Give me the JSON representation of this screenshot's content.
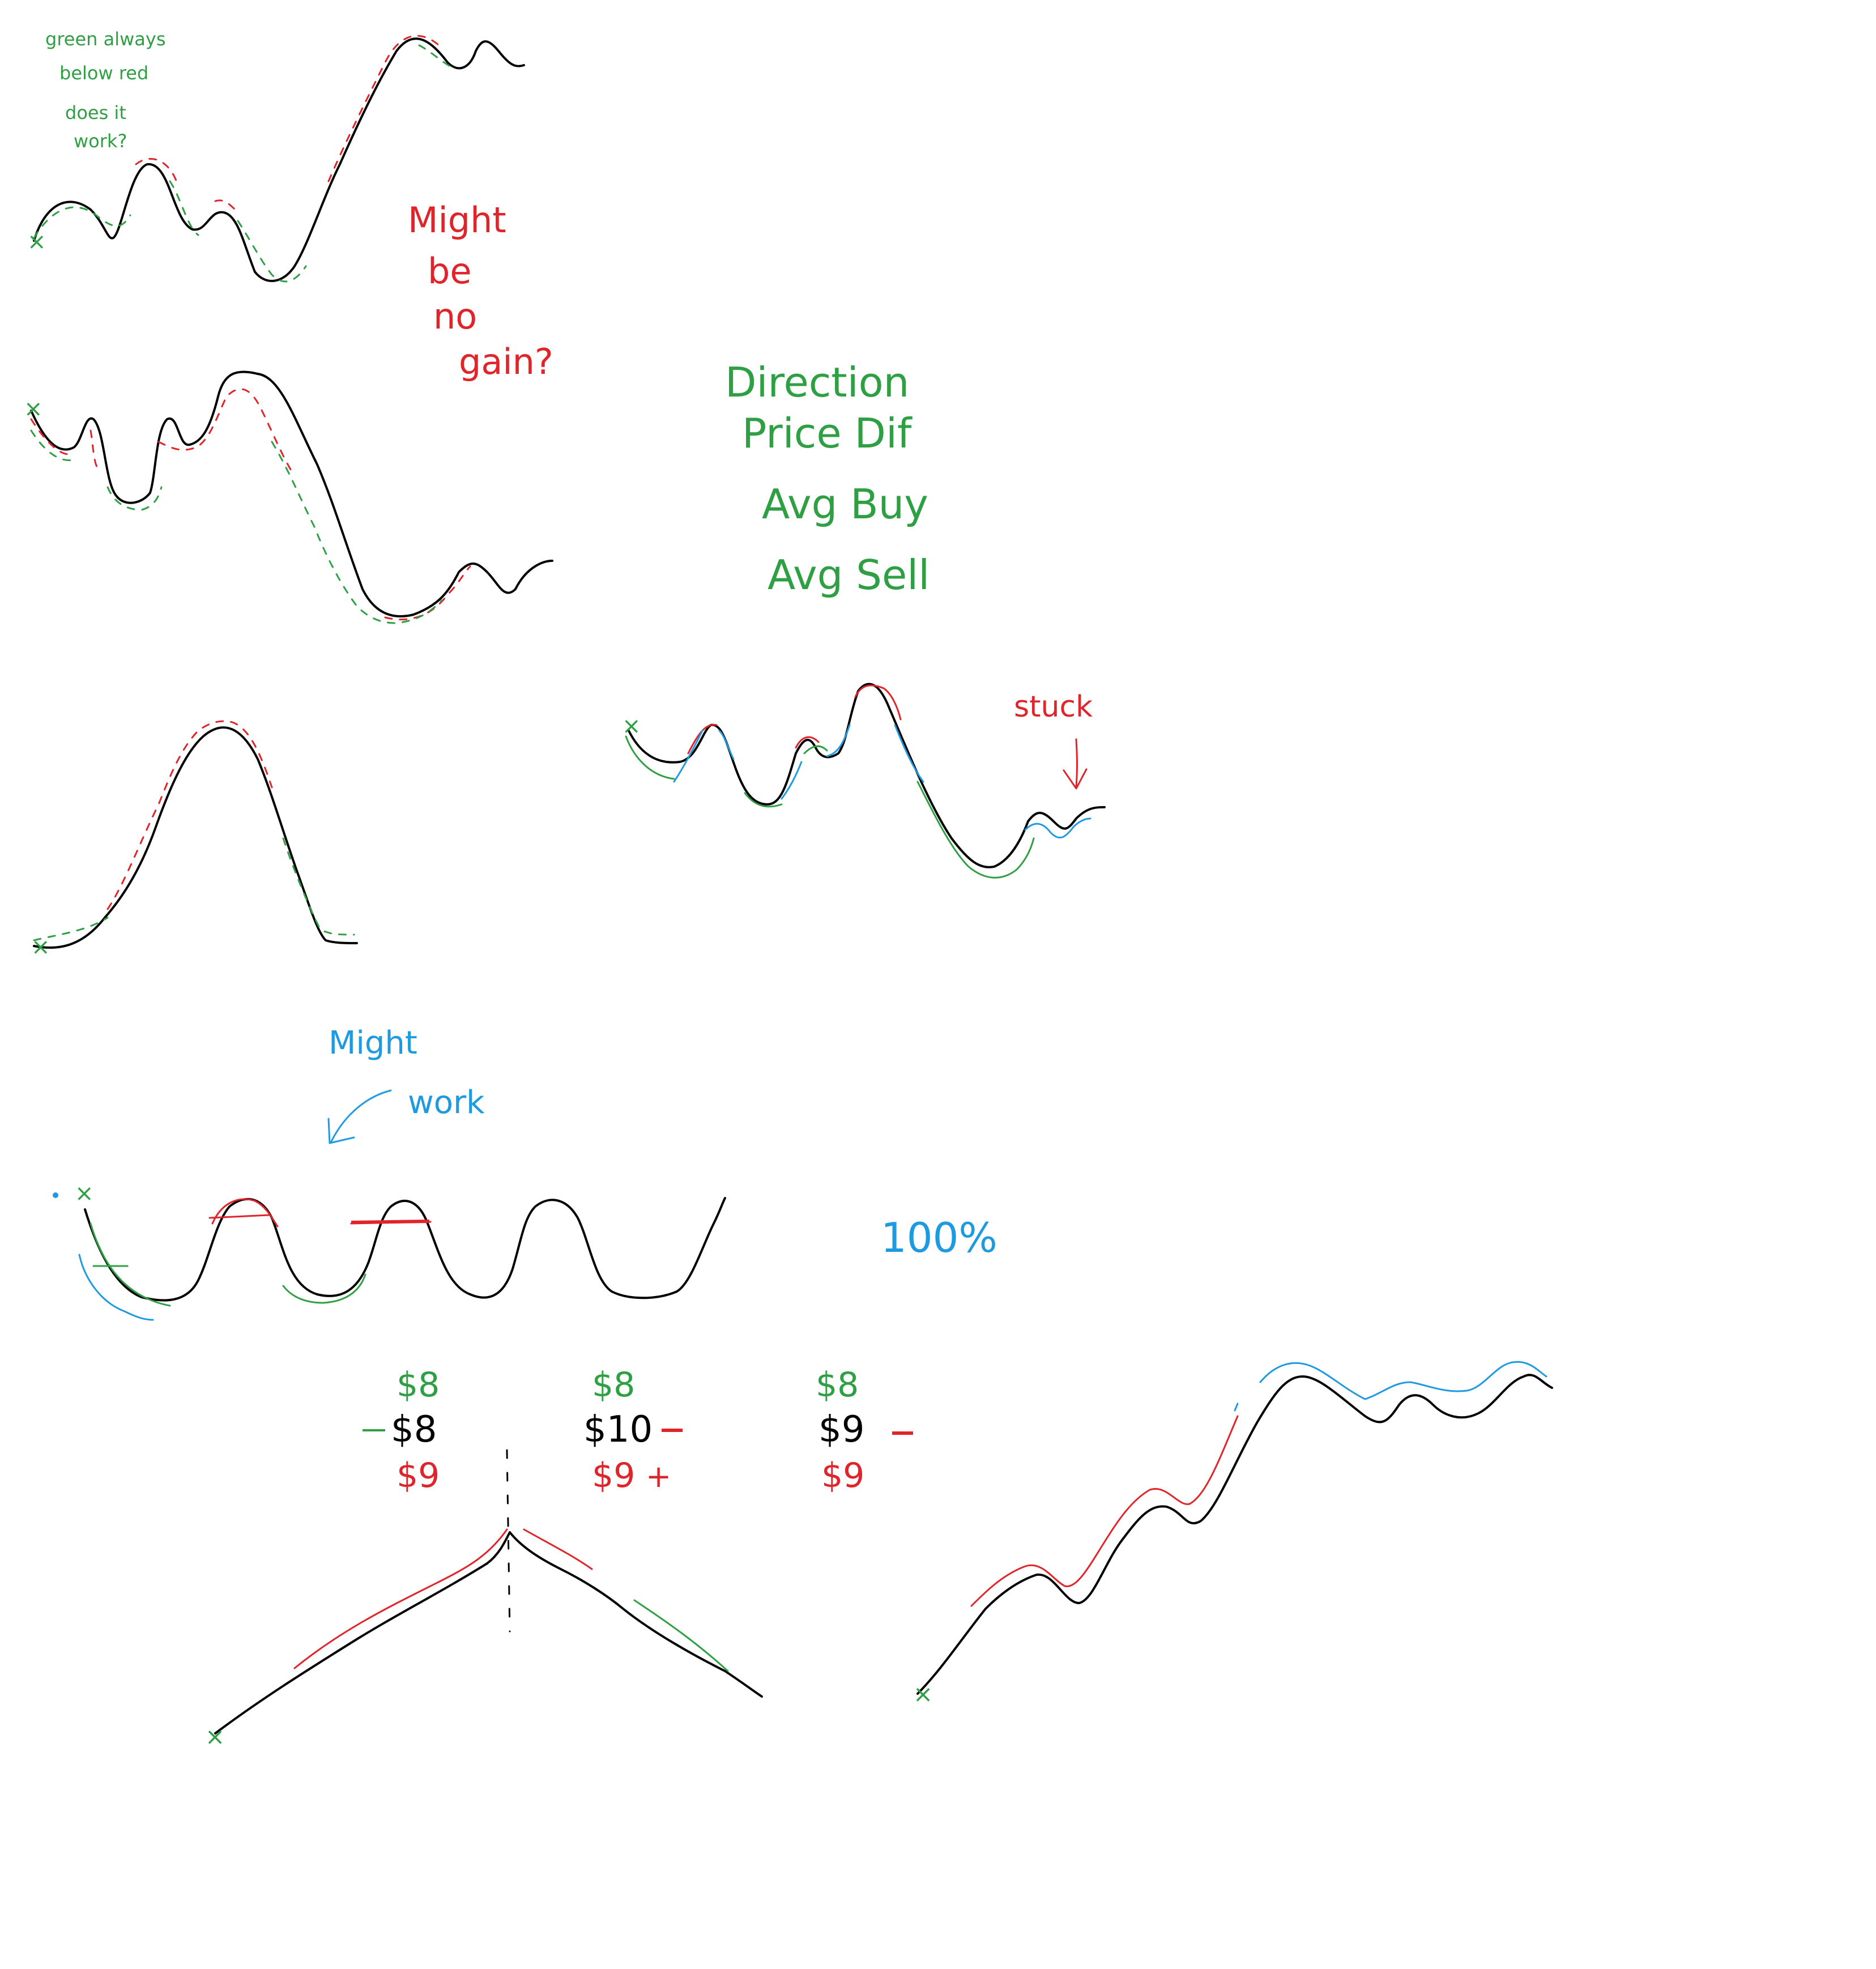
{
  "colors": {
    "price": "#000000",
    "green": "#2ea043",
    "red": "#e0242a",
    "blue": "#1e9be0"
  },
  "notes": {
    "green_note": [
      "green always",
      "below red",
      "does it",
      "work?"
    ],
    "might_be_no_gain": [
      "Might",
      "be",
      "no",
      "gain?"
    ],
    "metrics": [
      "Direction",
      "Price Dif",
      "Avg Buy",
      "Avg Sell"
    ],
    "stuck": "stuck",
    "might_work": [
      "Might",
      "work"
    ],
    "hundred_percent": "100%"
  },
  "price_cases": [
    {
      "avg_buy": "$8",
      "price": "$8",
      "avg_sell": "$9"
    },
    {
      "avg_buy": "$8",
      "price": "$10",
      "avg_sell": "$9"
    },
    {
      "avg_buy": "$8",
      "price": "$9",
      "avg_sell": "$9"
    }
  ],
  "marks": {
    "start": "×",
    "minus": "-",
    "plus": "+"
  }
}
